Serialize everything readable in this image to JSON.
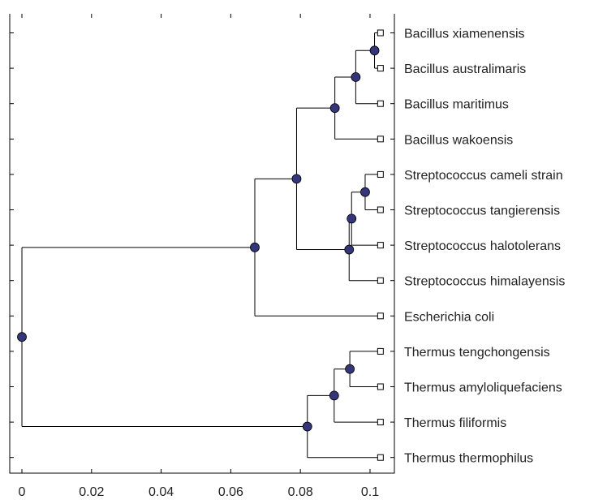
{
  "chart_data": {
    "type": "dendrogram",
    "orientation": "horizontal",
    "x_ticks": [
      "0",
      "0.02",
      "0.04",
      "0.06",
      "0.08",
      "0.1"
    ],
    "xlim": [
      -0.0035,
      0.107
    ],
    "leaves": [
      "Bacillus xiamenensis",
      "Bacillus australimaris",
      "Bacillus maritimus",
      "Bacillus wakoensis",
      "Streptococcus cameli strain",
      "Streptococcus tangierensis",
      "Streptococcus halotolerans",
      "Streptococcus himalayensis",
      "Escherichia coli",
      "Thermus tengchongensis",
      "Thermus amyloliquefaciens",
      "Thermus filiformis",
      "Thermus thermophilus"
    ],
    "leaf_height": 0.103,
    "nodes": [
      {
        "id": "n1",
        "height": 0.1013,
        "children": [
          0,
          1
        ]
      },
      {
        "id": "n2",
        "height": 0.0959,
        "children": [
          "n1",
          2
        ]
      },
      {
        "id": "n3",
        "height": 0.0899,
        "children": [
          "n2",
          3
        ]
      },
      {
        "id": "n4",
        "height": 0.0986,
        "children": [
          4,
          5
        ]
      },
      {
        "id": "n5",
        "height": 0.0947,
        "children": [
          "n4",
          6
        ]
      },
      {
        "id": "n6",
        "height": 0.094,
        "children": [
          "n5",
          7
        ]
      },
      {
        "id": "n7",
        "height": 0.0789,
        "children": [
          "n3",
          "n6"
        ]
      },
      {
        "id": "n8",
        "height": 0.0669,
        "children": [
          "n7",
          8
        ]
      },
      {
        "id": "n9",
        "height": 0.0942,
        "children": [
          9,
          10
        ]
      },
      {
        "id": "n10",
        "height": 0.0897,
        "children": [
          "n9",
          11
        ]
      },
      {
        "id": "n11",
        "height": 0.082,
        "children": [
          "n10",
          12
        ]
      },
      {
        "id": "n12",
        "height": 0.0,
        "children": [
          "n8",
          "n11"
        ]
      }
    ],
    "colors": {
      "node_fill": "#35357a",
      "leaf_fill": "#ffffff",
      "line": "#000000"
    }
  }
}
